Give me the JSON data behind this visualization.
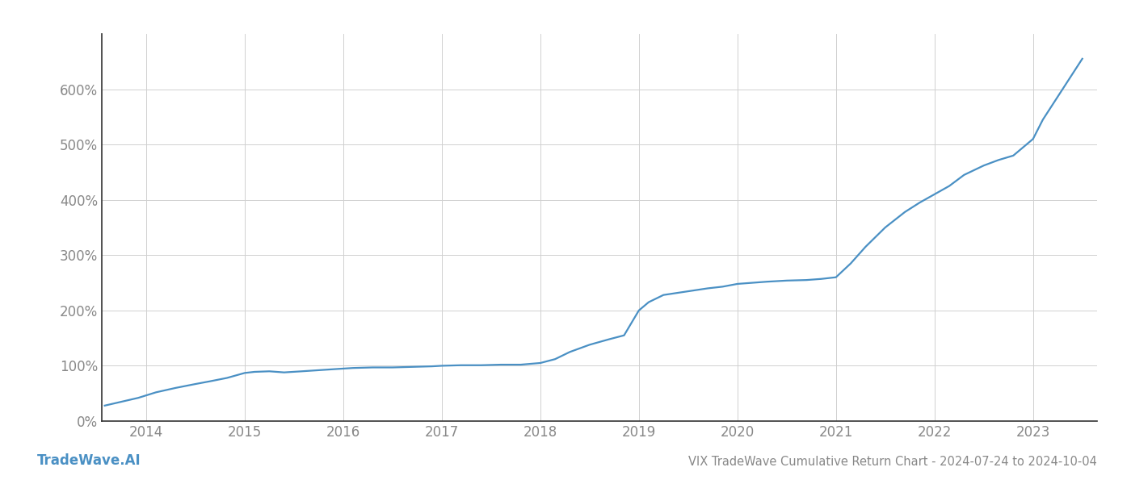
{
  "title": "VIX TradeWave Cumulative Return Chart - 2024-07-24 to 2024-10-04",
  "watermark": "TradeWave.AI",
  "line_color": "#4a90c4",
  "background_color": "#ffffff",
  "grid_color": "#d0d0d0",
  "x_years": [
    2014,
    2015,
    2016,
    2017,
    2018,
    2019,
    2020,
    2021,
    2022,
    2023
  ],
  "x_data": [
    2013.58,
    2013.75,
    2013.92,
    2014.1,
    2014.3,
    2014.5,
    2014.65,
    2014.82,
    2015.0,
    2015.1,
    2015.25,
    2015.4,
    2015.58,
    2015.75,
    2015.92,
    2016.1,
    2016.3,
    2016.5,
    2016.7,
    2016.9,
    2017.0,
    2017.2,
    2017.4,
    2017.6,
    2017.8,
    2018.0,
    2018.15,
    2018.3,
    2018.5,
    2018.7,
    2018.85,
    2019.0,
    2019.1,
    2019.25,
    2019.4,
    2019.55,
    2019.7,
    2019.85,
    2020.0,
    2020.15,
    2020.3,
    2020.5,
    2020.7,
    2020.85,
    2021.0,
    2021.15,
    2021.3,
    2021.5,
    2021.7,
    2021.85,
    2022.0,
    2022.15,
    2022.3,
    2022.5,
    2022.65,
    2022.8,
    2023.0,
    2023.1,
    2023.3,
    2023.5
  ],
  "y_data": [
    28,
    35,
    42,
    52,
    60,
    67,
    72,
    78,
    87,
    89,
    90,
    88,
    90,
    92,
    94,
    96,
    97,
    97,
    98,
    99,
    100,
    101,
    101,
    102,
    102,
    105,
    112,
    125,
    138,
    148,
    155,
    200,
    215,
    228,
    232,
    236,
    240,
    243,
    248,
    250,
    252,
    254,
    255,
    257,
    260,
    285,
    315,
    350,
    378,
    395,
    410,
    425,
    445,
    462,
    472,
    480,
    510,
    545,
    600,
    655
  ],
  "ylim": [
    0,
    700
  ],
  "yticks": [
    0,
    100,
    200,
    300,
    400,
    500,
    600
  ],
  "xlim": [
    2013.55,
    2023.65
  ],
  "title_fontsize": 10.5,
  "tick_fontsize": 12,
  "watermark_fontsize": 12,
  "line_width": 1.6
}
